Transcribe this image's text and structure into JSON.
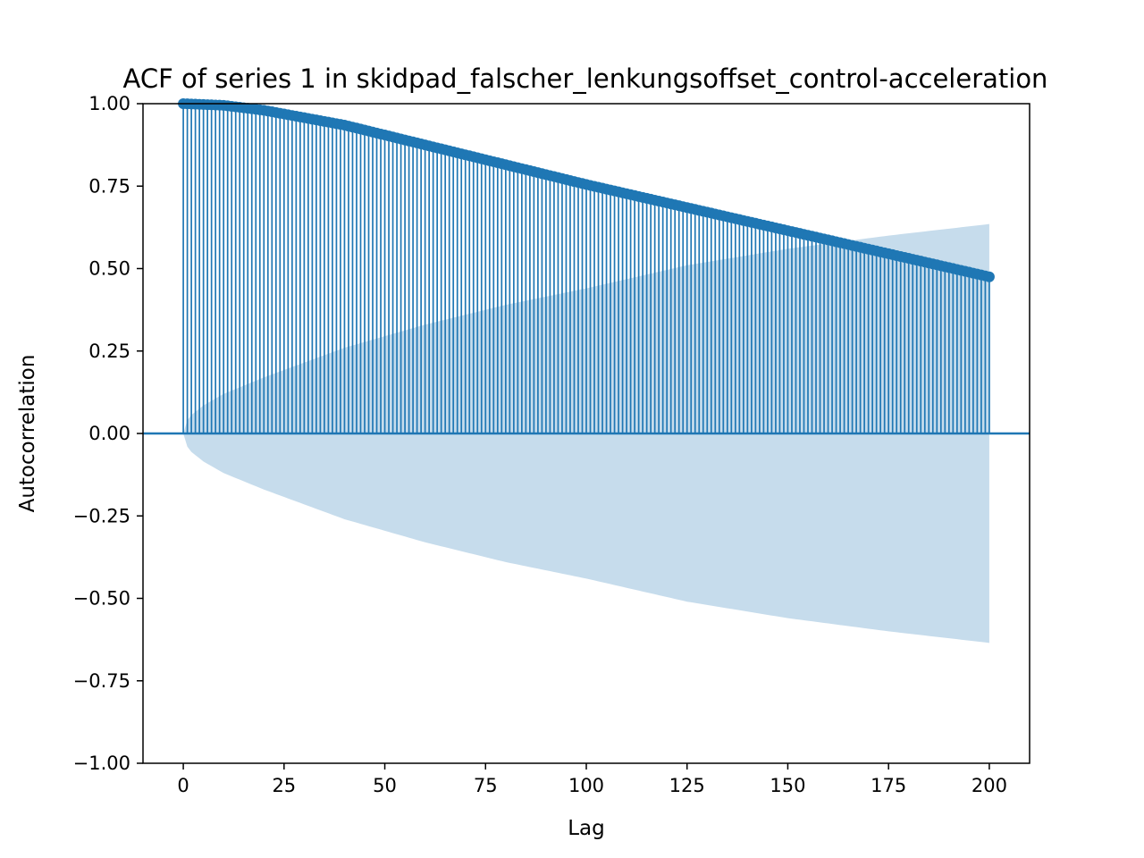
{
  "chart_data": {
    "type": "stem",
    "title": "ACF of series 1 in skidpad_falscher_lenkungsoffset_control-acceleration",
    "xlabel": "Lag",
    "ylabel": "Autocorrelation",
    "xlim": [
      -10,
      210
    ],
    "ylim": [
      -1.0,
      1.0
    ],
    "xticks": [
      0,
      25,
      50,
      75,
      100,
      125,
      150,
      175,
      200
    ],
    "xtick_labels": [
      "0",
      "25",
      "50",
      "75",
      "100",
      "125",
      "150",
      "175",
      "200"
    ],
    "yticks": [
      1.0,
      0.75,
      0.5,
      0.25,
      0.0,
      -0.25,
      -0.5,
      -0.75,
      -1.0
    ],
    "ytick_labels": [
      "1.00",
      "0.75",
      "0.50",
      "0.25",
      "0.00",
      "−0.25",
      "−0.50",
      "−0.75",
      "−1.00"
    ],
    "grid": false,
    "lags": {
      "start": 0,
      "end": 200,
      "step": 1
    },
    "acf_anchors": {
      "lag": [
        0,
        10,
        20,
        40,
        60,
        80,
        100,
        125,
        150,
        175,
        200
      ],
      "value": [
        1.0,
        0.995,
        0.98,
        0.935,
        0.875,
        0.815,
        0.755,
        0.685,
        0.615,
        0.545,
        0.475
      ]
    },
    "confidence_band": {
      "lag": [
        0,
        1,
        2,
        5,
        10,
        20,
        40,
        60,
        80,
        100,
        125,
        150,
        175,
        200
      ],
      "value": [
        0,
        0.04,
        0.056,
        0.085,
        0.12,
        0.17,
        0.26,
        0.33,
        0.39,
        0.44,
        0.51,
        0.56,
        0.6,
        0.635
      ]
    },
    "colors": {
      "stem": "#1f77b4",
      "band": "#c6dcec",
      "zero_line": "#1f77b4",
      "axes": "#000000"
    }
  }
}
